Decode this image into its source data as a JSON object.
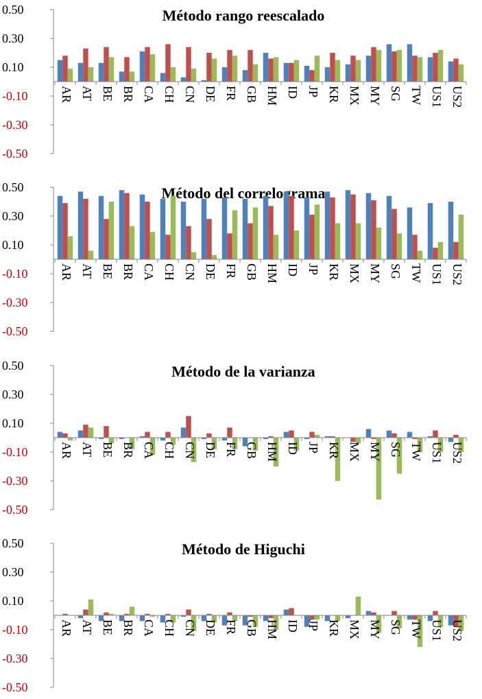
{
  "chart_data": [
    {
      "type": "bar",
      "title": "Método rango reescalado",
      "categories": [
        "AR",
        "AT",
        "BE",
        "BR",
        "CA",
        "CH",
        "CN",
        "DE",
        "FR",
        "GB",
        "HM",
        "ID",
        "JP",
        "KR",
        "MX",
        "MY",
        "SG",
        "TW",
        "US1",
        "US2"
      ],
      "ylim": [
        -0.5,
        0.5
      ],
      "yticks": [
        "0.50",
        "0.30",
        "0.10",
        "-0.10",
        "-0.30",
        "-0.50"
      ],
      "grid": false,
      "colors": [
        "#4F81BD",
        "#C0504D",
        "#9BBB59"
      ],
      "series": [
        {
          "values": [
            0.15,
            0.13,
            0.13,
            0.07,
            0.21,
            0.06,
            0.03,
            0.01,
            0.1,
            0.08,
            0.2,
            0.13,
            0.11,
            0.1,
            0.12,
            0.18,
            0.26,
            0.26,
            0.17,
            0.14
          ]
        },
        {
          "values": [
            0.18,
            0.23,
            0.24,
            0.17,
            0.24,
            0.26,
            0.24,
            0.2,
            0.22,
            0.22,
            0.16,
            0.13,
            0.08,
            0.2,
            0.18,
            0.24,
            0.21,
            0.18,
            0.2,
            0.16
          ]
        },
        {
          "values": [
            0.09,
            0.1,
            0.17,
            0.07,
            0.19,
            0.1,
            0.09,
            0.16,
            0.18,
            0.12,
            0.17,
            0.15,
            0.18,
            0.15,
            0.15,
            0.22,
            0.22,
            0.17,
            0.22,
            0.12
          ]
        }
      ]
    },
    {
      "type": "bar",
      "title": "Método del correlograma",
      "categories": [
        "AR",
        "AT",
        "BE",
        "BR",
        "CA",
        "CH",
        "CN",
        "DE",
        "FR",
        "GB",
        "HM",
        "ID",
        "JP",
        "KR",
        "MX",
        "MY",
        "SG",
        "TW",
        "US1",
        "US2"
      ],
      "ylim": [
        -0.5,
        0.5
      ],
      "yticks": [
        "0.50",
        "0.30",
        "0.10",
        "-0.10",
        "-0.30",
        "-0.50"
      ],
      "grid": false,
      "colors": [
        "#4F81BD",
        "#C0504D",
        "#9BBB59"
      ],
      "series": [
        {
          "values": [
            0.44,
            0.47,
            0.44,
            0.48,
            0.45,
            0.42,
            0.4,
            0.42,
            0.43,
            0.42,
            0.44,
            0.47,
            0.43,
            0.47,
            0.48,
            0.46,
            0.44,
            0.36,
            0.39,
            0.4
          ]
        },
        {
          "values": [
            0.39,
            0.42,
            0.28,
            0.46,
            0.4,
            0.17,
            0.23,
            0.28,
            0.18,
            0.25,
            0.37,
            0.44,
            0.31,
            0.43,
            0.45,
            0.41,
            0.35,
            0.17,
            0.08,
            0.12
          ]
        },
        {
          "values": [
            0.16,
            0.06,
            0.4,
            0.23,
            0.19,
            0.44,
            0.05,
            0.03,
            0.34,
            0.36,
            0.17,
            0.2,
            0.38,
            0.25,
            0.25,
            0.22,
            0.18,
            0.06,
            0.12,
            0.31
          ]
        }
      ]
    },
    {
      "type": "bar",
      "title": "Método de la varianza",
      "categories": [
        "AR",
        "AT",
        "BE",
        "BR",
        "CA",
        "CH",
        "CN",
        "DE",
        "FR",
        "GB",
        "HM",
        "ID",
        "JP",
        "KR",
        "MX",
        "MY",
        "SG",
        "TW",
        "US1",
        "US2"
      ],
      "ylim": [
        -0.5,
        0.5
      ],
      "yticks": [
        "0.50",
        "0.30",
        "0.10",
        "-0.10",
        "-0.30",
        "-0.50"
      ],
      "grid": false,
      "colors": [
        "#4F81BD",
        "#C0504D",
        "#9BBB59"
      ],
      "series": [
        {
          "values": [
            0.04,
            0.05,
            -0.01,
            -0.01,
            0.01,
            -0.02,
            0.07,
            -0.01,
            -0.02,
            -0.06,
            -0.01,
            0.04,
            -0.01,
            0.01,
            0.0,
            0.06,
            0.05,
            0.04,
            0.01,
            -0.03
          ]
        },
        {
          "values": [
            0.03,
            0.09,
            0.08,
            0.0,
            0.04,
            0.04,
            0.15,
            0.03,
            0.07,
            0.0,
            0.01,
            0.05,
            0.04,
            0.01,
            -0.03,
            -0.01,
            0.03,
            -0.01,
            0.05,
            0.02
          ]
        },
        {
          "values": [
            -0.02,
            0.07,
            -0.04,
            -0.08,
            -0.12,
            -0.05,
            -0.17,
            -0.08,
            -0.08,
            -0.09,
            -0.2,
            -0.09,
            0.02,
            -0.3,
            -0.04,
            -0.43,
            -0.25,
            -0.1,
            -0.1,
            -0.1
          ]
        }
      ]
    },
    {
      "type": "bar",
      "title": "Método de Higuchi",
      "categories": [
        "AR",
        "AT",
        "BE",
        "BR",
        "CA",
        "CH",
        "CN",
        "DE",
        "FR",
        "GB",
        "HM",
        "ID",
        "JP",
        "KR",
        "MX",
        "MY",
        "SG",
        "TW",
        "US1",
        "US2"
      ],
      "ylim": [
        -0.5,
        0.5
      ],
      "yticks": [
        "0.50",
        "0.30",
        "0.10",
        "-0.10",
        "-0.30",
        "-0.50"
      ],
      "grid": false,
      "colors": [
        "#4F81BD",
        "#C0504D",
        "#9BBB59"
      ],
      "series": [
        {
          "values": [
            0.0,
            -0.02,
            -0.04,
            -0.04,
            -0.04,
            -0.05,
            -0.01,
            -0.04,
            -0.07,
            -0.07,
            -0.04,
            0.04,
            -0.08,
            -0.04,
            -0.02,
            0.03,
            0.0,
            -0.03,
            -0.04,
            -0.07
          ]
        },
        {
          "values": [
            0.01,
            0.04,
            0.02,
            0.01,
            0.01,
            0.01,
            0.04,
            0.01,
            0.02,
            -0.01,
            -0.02,
            0.05,
            -0.03,
            0.0,
            0.0,
            0.02,
            0.03,
            -0.03,
            0.03,
            -0.08
          ]
        },
        {
          "values": [
            0.0,
            0.11,
            0.01,
            0.06,
            -0.01,
            -0.05,
            -0.11,
            -0.05,
            -0.04,
            -0.08,
            -0.1,
            0.0,
            -0.03,
            -0.04,
            0.13,
            -0.12,
            -0.09,
            -0.22,
            -0.08,
            -0.11
          ]
        }
      ]
    }
  ]
}
